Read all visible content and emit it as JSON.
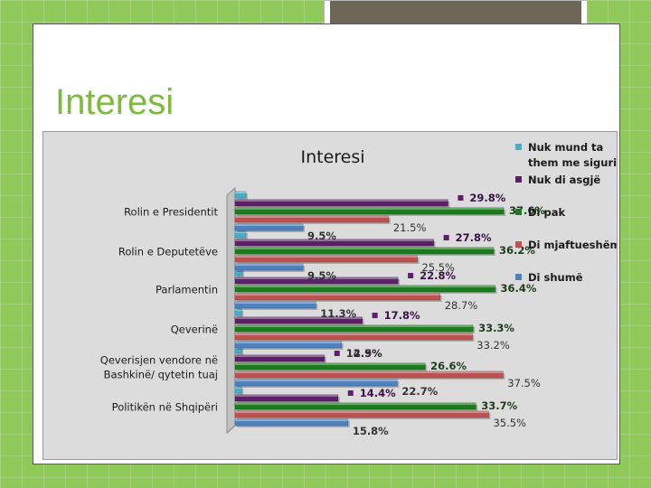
{
  "slide": {
    "title": "Interesi"
  },
  "chart_data": {
    "type": "bar",
    "orientation": "horizontal",
    "title": "Interesi",
    "categories": [
      "Rolin e Presidentit",
      "Rolin e Deputetëve",
      "Parlamentin",
      "Qeverinë",
      "Qeverisjen vendore në Bashkinë/ qytetin tuaj",
      "Politikën në Shqipëri"
    ],
    "category_lines": [
      [
        "Rolin e Presidentit"
      ],
      [
        "Rolin e Deputetëve"
      ],
      [
        "Parlamentin"
      ],
      [
        "Qeverinë"
      ],
      [
        "Qeverisjen vendore në",
        "Bashkinë/ qytetin tuaj"
      ],
      [
        "Politikën në Shqipëri"
      ]
    ],
    "series": [
      {
        "name": "Nuk mund ta them me siguri",
        "legend_lines": [
          "Nuk mund ta",
          "them me siguri"
        ],
        "color": "#4bacc6",
        "values": [
          1.5,
          1.5,
          1.0,
          0.9,
          0.9,
          0.9
        ],
        "labels": [
          "",
          "",
          "",
          "",
          "",
          ""
        ]
      },
      {
        "name": "Nuk di asgjë",
        "legend_lines": [
          "Nuk di asgjë"
        ],
        "color": "#5e1f6a",
        "values": [
          29.8,
          27.8,
          22.8,
          17.8,
          12.5,
          14.4
        ],
        "labels": [
          "29.8%",
          "27.8%",
          "22.8%",
          "17.8%",
          "12.5%",
          "14.4%"
        ]
      },
      {
        "name": "Di pak",
        "legend_lines": [
          "Di pak"
        ],
        "color": "#1e7a1e",
        "values": [
          37.6,
          36.2,
          36.4,
          33.3,
          26.6,
          33.7
        ],
        "labels": [
          "37.6%",
          "36.2%",
          "36.4%",
          "33.3%",
          "26.6%",
          "33.7%"
        ]
      },
      {
        "name": "Di mjaftueshëm",
        "legend_lines": [
          "Di mjaftueshëm"
        ],
        "color": "#c0504d",
        "values": [
          21.5,
          25.5,
          28.7,
          33.2,
          37.5,
          35.5
        ],
        "labels": [
          "21.5%",
          "25.5%",
          "28.7%",
          "33.2%",
          "37.5%",
          "35.5%"
        ]
      },
      {
        "name": "Di shumë",
        "legend_lines": [
          "Di shumë"
        ],
        "color": "#4f81bd",
        "values": [
          9.5,
          9.5,
          11.3,
          14.9,
          22.7,
          15.8
        ],
        "labels": [
          "9.5%",
          "9.5%",
          "11.3%",
          "14.9%",
          "22.7%",
          "15.8%"
        ]
      }
    ],
    "xlim": [
      0,
      40
    ],
    "grid": false,
    "legend_position": "right"
  }
}
